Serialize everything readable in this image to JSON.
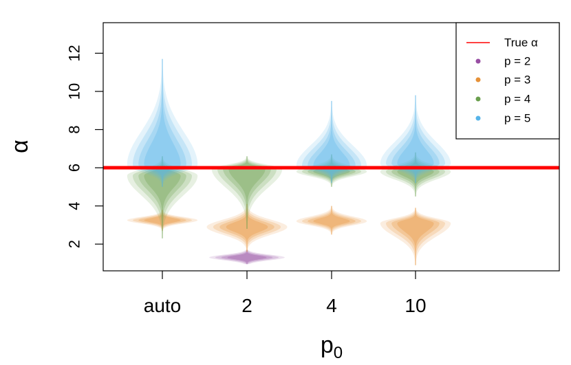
{
  "chart_data": {
    "type": "violin",
    "title": "",
    "xlabel": "p",
    "xlabel_subscript": "0",
    "ylabel": "α",
    "ylim": [
      0.6,
      13.6
    ],
    "yticks": [
      2,
      4,
      6,
      8,
      10,
      12
    ],
    "ytick_labels": [
      "2",
      "4",
      "6",
      "8",
      "10",
      "12"
    ],
    "categories": [
      "auto",
      "2",
      "4",
      "10"
    ],
    "reference_line": {
      "name": "True α",
      "value": 6,
      "color": "#ff0000"
    },
    "series": [
      {
        "name": "p = 2",
        "color": "#984ea3",
        "groups": [
          {
            "category": "2",
            "center": 1.3,
            "min": 0.95,
            "max": 1.7,
            "halfwidth": 0.45
          }
        ]
      },
      {
        "name": "p = 3",
        "color": "#e69138",
        "groups": [
          {
            "category": "auto",
            "center": 3.25,
            "min": 2.7,
            "max": 3.8,
            "halfwidth": 0.42
          },
          {
            "category": "2",
            "center": 2.9,
            "min": 1.6,
            "max": 4.1,
            "halfwidth": 0.48
          },
          {
            "category": "4",
            "center": 3.2,
            "min": 2.5,
            "max": 4.0,
            "halfwidth": 0.42
          },
          {
            "category": "10",
            "center": 3.1,
            "min": 0.9,
            "max": 3.9,
            "halfwidth": 0.42
          }
        ]
      },
      {
        "name": "p = 4",
        "color": "#6a9f4d",
        "groups": [
          {
            "category": "auto",
            "center": 5.6,
            "min": 2.3,
            "max": 6.6,
            "halfwidth": 0.42
          },
          {
            "category": "2",
            "center": 5.95,
            "min": 2.8,
            "max": 6.6,
            "halfwidth": 0.42
          },
          {
            "category": "4",
            "center": 5.8,
            "min": 5.0,
            "max": 6.7,
            "halfwidth": 0.42
          },
          {
            "category": "10",
            "center": 5.8,
            "min": 4.5,
            "max": 6.8,
            "halfwidth": 0.42
          }
        ]
      },
      {
        "name": "p = 5",
        "color": "#56b4e9",
        "groups": [
          {
            "category": "auto",
            "center": 6.15,
            "min": 5.0,
            "max": 11.7,
            "halfwidth": 0.42
          },
          {
            "category": "4",
            "center": 6.1,
            "min": 5.2,
            "max": 9.5,
            "halfwidth": 0.42
          },
          {
            "category": "10",
            "center": 6.2,
            "min": 5.2,
            "max": 9.8,
            "halfwidth": 0.42
          }
        ]
      }
    ],
    "legend": {
      "position": "top-right",
      "entries": [
        "True α",
        "p = 2",
        "p = 3",
        "p = 4",
        "p = 5"
      ]
    }
  }
}
